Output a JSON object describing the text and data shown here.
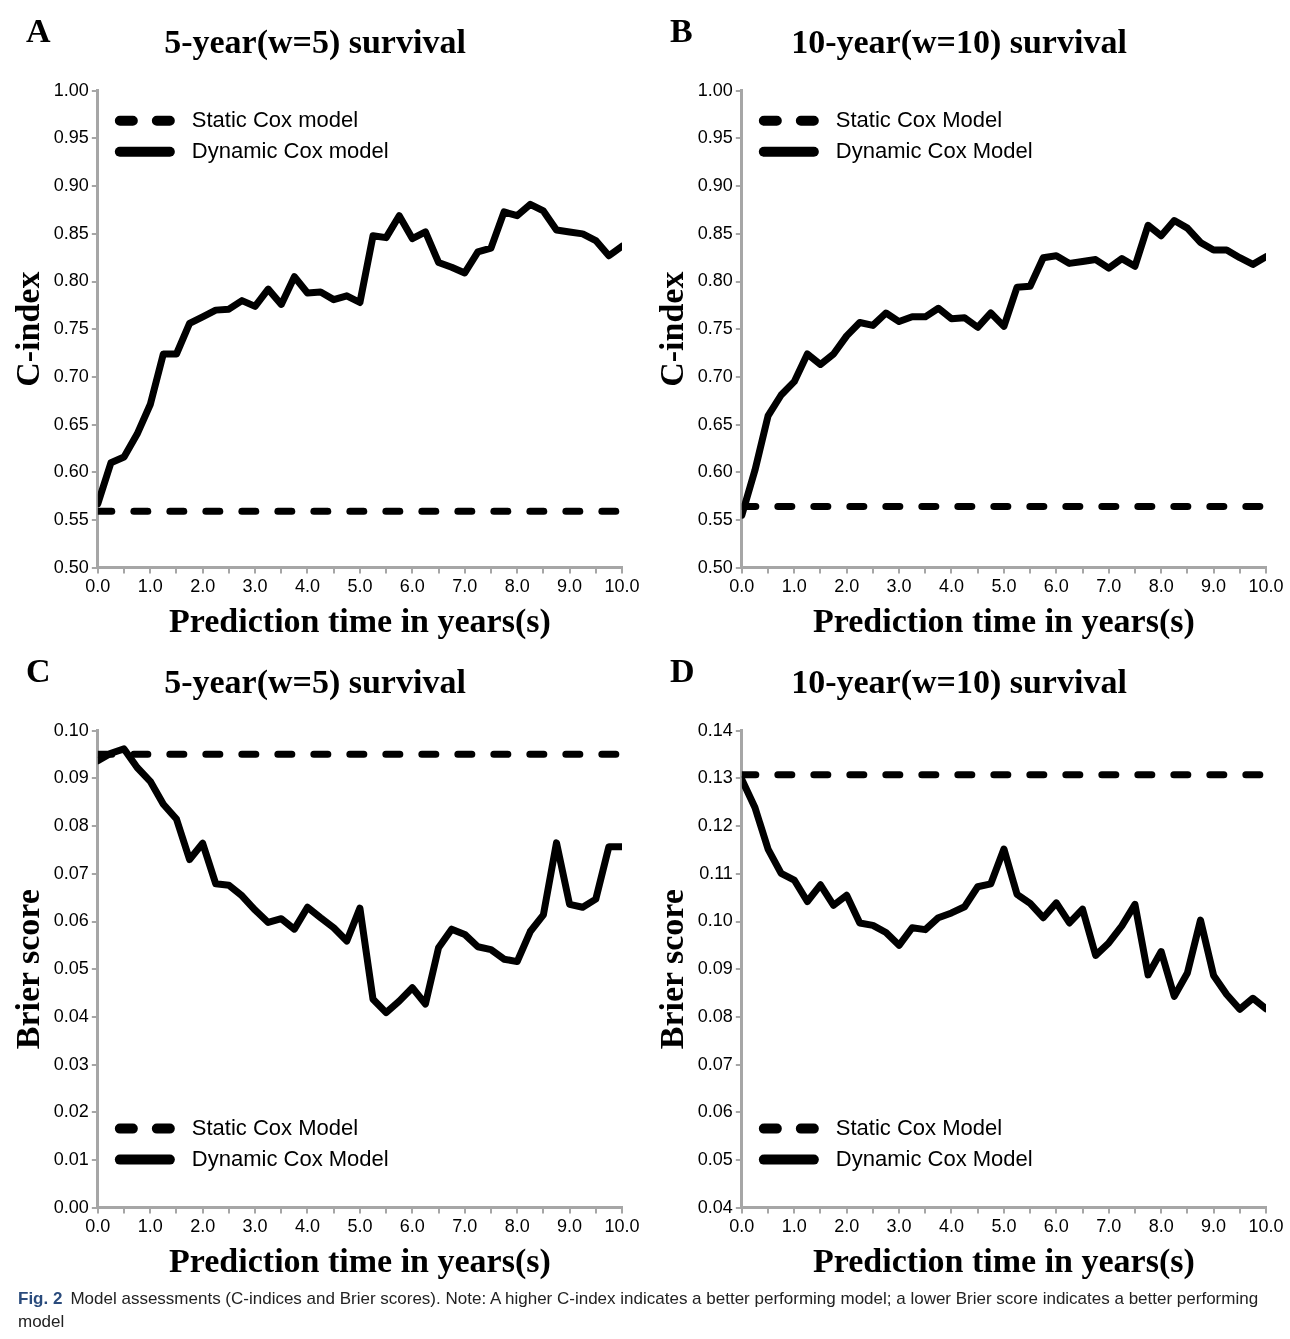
{
  "chart_data": [
    {
      "type": "line",
      "title": "5-year(w=5) survival",
      "xlabel": "Prediction time in years(s)",
      "ylabel": "C-index",
      "annotations": [
        "A"
      ],
      "x": [
        0,
        0.25,
        0.5,
        0.75,
        1,
        1.25,
        1.5,
        1.75,
        2,
        2.25,
        2.5,
        2.75,
        3,
        3.25,
        3.5,
        3.75,
        4,
        4.25,
        4.5,
        4.75,
        5,
        5.25,
        5.5,
        5.75,
        6,
        6.25,
        6.5,
        6.75,
        7,
        7.25,
        7.5,
        7.75,
        8,
        8.25,
        8.5,
        8.75,
        9,
        9.25,
        9.5,
        9.75,
        10
      ],
      "series": [
        {
          "name": "Static Cox model",
          "color": "#000000",
          "line_style": "dashed",
          "values": [
            0.559,
            0.559,
            0.559,
            0.559,
            0.559,
            0.559,
            0.559,
            0.559,
            0.559,
            0.559,
            0.559,
            0.559,
            0.559,
            0.559,
            0.559,
            0.559,
            0.559,
            0.559,
            0.559,
            0.559,
            0.559,
            0.559,
            0.559,
            0.559,
            0.559,
            0.559,
            0.559,
            0.559,
            0.559,
            0.559,
            0.559,
            0.559,
            0.559,
            0.559,
            0.559,
            0.559,
            0.559,
            0.559,
            0.559,
            0.559,
            0.559
          ]
        },
        {
          "name": "Dynamic Cox model",
          "color": "#000000",
          "line_style": "solid",
          "values": [
            0.567,
            0.61,
            0.616,
            0.64,
            0.671,
            0.724,
            0.724,
            0.756,
            0.763,
            0.77,
            0.771,
            0.78,
            0.774,
            0.792,
            0.776,
            0.805,
            0.788,
            0.789,
            0.781,
            0.785,
            0.778,
            0.848,
            0.846,
            0.869,
            0.845,
            0.852,
            0.82,
            0.815,
            0.809,
            0.831,
            0.835,
            0.873,
            0.869,
            0.881,
            0.874,
            0.854,
            0.852,
            0.85,
            0.843,
            0.827,
            0.837
          ]
        }
      ],
      "xlim": [
        0,
        10
      ],
      "xticks": [
        {
          "value": 0,
          "label": "0.0"
        },
        {
          "value": 0.5,
          "label": null
        },
        {
          "value": 1,
          "label": "1.0"
        },
        {
          "value": 1.5,
          "label": null
        },
        {
          "value": 2,
          "label": "2.0"
        },
        {
          "value": 2.5,
          "label": null
        },
        {
          "value": 3,
          "label": "3.0"
        },
        {
          "value": 3.5,
          "label": null
        },
        {
          "value": 4,
          "label": "4.0"
        },
        {
          "value": 4.5,
          "label": null
        },
        {
          "value": 5,
          "label": "5.0"
        },
        {
          "value": 5.5,
          "label": null
        },
        {
          "value": 6,
          "label": "6.0"
        },
        {
          "value": 6.5,
          "label": null
        },
        {
          "value": 7,
          "label": "7.0"
        },
        {
          "value": 7.5,
          "label": null
        },
        {
          "value": 8,
          "label": "8.0"
        },
        {
          "value": 8.5,
          "label": null
        },
        {
          "value": 9,
          "label": "9.0"
        },
        {
          "value": 9.5,
          "label": null
        },
        {
          "value": 10,
          "label": "10.0"
        }
      ],
      "ylim": [
        0.5,
        1
      ],
      "yticks": [
        {
          "value": 0.5,
          "label": "0.50"
        },
        0.55,
        {
          "value": 0.6,
          "label": "0.60"
        },
        0.65,
        {
          "value": 0.7,
          "label": "0.70"
        },
        0.75,
        {
          "value": 0.8,
          "label": "0.80"
        },
        0.85,
        {
          "value": 0.9,
          "label": "0.90"
        },
        0.95,
        {
          "value": 1,
          "label": "1.00"
        }
      ],
      "grid": false,
      "legend": "top left",
      "marker": "none"
    },
    {
      "type": "line",
      "title": "10-year(w=10) survival",
      "xlabel": "Prediction time in years(s)",
      "ylabel": "C-index",
      "annotations": [
        "B"
      ],
      "x": [
        0,
        0.25,
        0.5,
        0.75,
        1,
        1.25,
        1.5,
        1.75,
        2,
        2.25,
        2.5,
        2.75,
        3,
        3.25,
        3.5,
        3.75,
        4,
        4.25,
        4.5,
        4.75,
        5,
        5.25,
        5.5,
        5.75,
        6,
        6.25,
        6.5,
        6.75,
        7,
        7.25,
        7.5,
        7.75,
        8,
        8.25,
        8.5,
        8.75,
        9,
        9.25,
        9.5,
        9.75,
        10
      ],
      "series": [
        {
          "name": "Static Cox Model",
          "color": "#000000",
          "line_style": "dashed",
          "values": [
            0.564,
            0.564,
            0.564,
            0.564,
            0.564,
            0.564,
            0.564,
            0.564,
            0.564,
            0.564,
            0.564,
            0.564,
            0.564,
            0.564,
            0.564,
            0.564,
            0.564,
            0.564,
            0.564,
            0.564,
            0.564,
            0.564,
            0.564,
            0.564,
            0.564,
            0.564,
            0.564,
            0.564,
            0.564,
            0.564,
            0.564,
            0.564,
            0.564,
            0.564,
            0.564,
            0.564,
            0.564,
            0.564,
            0.564,
            0.564,
            0.564
          ]
        },
        {
          "name": "Dynamic Cox Model",
          "color": "#000000",
          "line_style": "solid",
          "values": [
            0.555,
            0.602,
            0.659,
            0.681,
            0.695,
            0.724,
            0.713,
            0.724,
            0.743,
            0.757,
            0.754,
            0.767,
            0.758,
            0.763,
            0.763,
            0.772,
            0.761,
            0.762,
            0.752,
            0.767,
            0.753,
            0.794,
            0.795,
            0.825,
            0.827,
            0.819,
            0.821,
            0.823,
            0.814,
            0.824,
            0.816,
            0.859,
            0.848,
            0.864,
            0.856,
            0.841,
            0.833,
            0.833,
            0.825,
            0.818,
            0.826
          ]
        }
      ],
      "xlim": [
        0,
        10
      ],
      "xticks": [
        {
          "value": 0,
          "label": "0.0"
        },
        {
          "value": 0.5,
          "label": null
        },
        {
          "value": 1,
          "label": "1.0"
        },
        {
          "value": 1.5,
          "label": null
        },
        {
          "value": 2,
          "label": "2.0"
        },
        {
          "value": 2.5,
          "label": null
        },
        {
          "value": 3,
          "label": "3.0"
        },
        {
          "value": 3.5,
          "label": null
        },
        {
          "value": 4,
          "label": "4.0"
        },
        {
          "value": 4.5,
          "label": null
        },
        {
          "value": 5,
          "label": "5.0"
        },
        {
          "value": 5.5,
          "label": null
        },
        {
          "value": 6,
          "label": "6.0"
        },
        {
          "value": 6.5,
          "label": null
        },
        {
          "value": 7,
          "label": "7.0"
        },
        {
          "value": 7.5,
          "label": null
        },
        {
          "value": 8,
          "label": "8.0"
        },
        {
          "value": 8.5,
          "label": null
        },
        {
          "value": 9,
          "label": "9.0"
        },
        {
          "value": 9.5,
          "label": null
        },
        {
          "value": 10,
          "label": "10.0"
        }
      ],
      "ylim": [
        0.5,
        1
      ],
      "yticks": [
        {
          "value": 0.5,
          "label": "0.50"
        },
        0.55,
        {
          "value": 0.6,
          "label": "0.60"
        },
        0.65,
        {
          "value": 0.7,
          "label": "0.70"
        },
        0.75,
        {
          "value": 0.8,
          "label": "0.80"
        },
        0.85,
        {
          "value": 0.9,
          "label": "0.90"
        },
        0.95,
        {
          "value": 1,
          "label": "1.00"
        }
      ],
      "grid": false,
      "legend": "top left",
      "marker": "none"
    },
    {
      "type": "line",
      "title": "5-year(w=5) survival",
      "xlabel": "Prediction time in years(s)",
      "ylabel": "Brier score",
      "annotations": [
        "C"
      ],
      "x": [
        0,
        0.25,
        0.5,
        0.75,
        1,
        1.25,
        1.5,
        1.75,
        2,
        2.25,
        2.5,
        2.75,
        3,
        3.25,
        3.5,
        3.75,
        4,
        4.25,
        4.5,
        4.75,
        5,
        5.25,
        5.5,
        5.75,
        6,
        6.25,
        6.5,
        6.75,
        7,
        7.25,
        7.5,
        7.75,
        8,
        8.25,
        8.5,
        8.75,
        9,
        9.25,
        9.5,
        9.75,
        10
      ],
      "series": [
        {
          "name": "Static Cox Model",
          "color": "#000000",
          "line_style": "dashed",
          "values": [
            0.0951,
            0.0951,
            0.0951,
            0.0951,
            0.0951,
            0.0951,
            0.0951,
            0.0951,
            0.0951,
            0.0951,
            0.0951,
            0.0951,
            0.0951,
            0.0951,
            0.0951,
            0.0951,
            0.0951,
            0.0951,
            0.0951,
            0.0951,
            0.0951,
            0.0951,
            0.0951,
            0.0951,
            0.0951,
            0.0951,
            0.0951,
            0.0951,
            0.0951,
            0.0951,
            0.0951,
            0.0951,
            0.0951,
            0.0951,
            0.0951,
            0.0951,
            0.0951,
            0.0951,
            0.0951,
            0.0951,
            0.0951
          ]
        },
        {
          "name": "Dynamic Cox Model",
          "color": "#000000",
          "line_style": "solid",
          "values": [
            0.0937,
            0.0953,
            0.0962,
            0.0923,
            0.0894,
            0.0846,
            0.0815,
            0.073,
            0.0764,
            0.0679,
            0.0676,
            0.0654,
            0.0624,
            0.0598,
            0.0606,
            0.0584,
            0.063,
            0.0608,
            0.0587,
            0.0559,
            0.0628,
            0.0437,
            0.0409,
            0.0433,
            0.0461,
            0.0427,
            0.0545,
            0.0584,
            0.0573,
            0.0547,
            0.0541,
            0.0521,
            0.0516,
            0.0579,
            0.0614,
            0.0765,
            0.0636,
            0.063,
            0.0647,
            0.0757,
            0.0757
          ]
        }
      ],
      "xlim": [
        0,
        10
      ],
      "xticks": [
        {
          "value": 0,
          "label": "0.0"
        },
        {
          "value": 0.5,
          "label": null
        },
        {
          "value": 1,
          "label": "1.0"
        },
        {
          "value": 1.5,
          "label": null
        },
        {
          "value": 2,
          "label": "2.0"
        },
        {
          "value": 2.5,
          "label": null
        },
        {
          "value": 3,
          "label": "3.0"
        },
        {
          "value": 3.5,
          "label": null
        },
        {
          "value": 4,
          "label": "4.0"
        },
        {
          "value": 4.5,
          "label": null
        },
        {
          "value": 5,
          "label": "5.0"
        },
        {
          "value": 5.5,
          "label": null
        },
        {
          "value": 6,
          "label": "6.0"
        },
        {
          "value": 6.5,
          "label": null
        },
        {
          "value": 7,
          "label": "7.0"
        },
        {
          "value": 7.5,
          "label": null
        },
        {
          "value": 8,
          "label": "8.0"
        },
        {
          "value": 8.5,
          "label": null
        },
        {
          "value": 9,
          "label": "9.0"
        },
        {
          "value": 9.5,
          "label": null
        },
        {
          "value": 10,
          "label": "10.0"
        }
      ],
      "ylim": [
        0,
        0.1
      ],
      "yticks": [
        {
          "value": 0,
          "label": "0.00"
        },
        0.01,
        0.02,
        0.03,
        0.04,
        0.05,
        0.06,
        0.07,
        0.08,
        0.09,
        {
          "value": 0.1,
          "label": "0.10"
        }
      ],
      "grid": false,
      "legend": "bottom left",
      "marker": "none"
    },
    {
      "type": "line",
      "title": "10-year(w=10) survival",
      "xlabel": "Prediction time in years(s)",
      "ylabel": "Brier score",
      "annotations": [
        "D",
        "Fig. 2",
        "Model assessments (C-indices and Brier scores). Note: A higher C-index indicates a better performing model; a lower Brier score indicates a better performing model"
      ],
      "x": [
        0,
        0.25,
        0.5,
        0.75,
        1,
        1.25,
        1.5,
        1.75,
        2,
        2.25,
        2.5,
        2.75,
        3,
        3.25,
        3.5,
        3.75,
        4,
        4.25,
        4.5,
        4.75,
        5,
        5.25,
        5.5,
        5.75,
        6,
        6.25,
        6.5,
        6.75,
        7,
        7.25,
        7.5,
        7.75,
        8,
        8.25,
        8.5,
        8.75,
        9,
        9.25,
        9.5,
        9.75,
        10
      ],
      "series": [
        {
          "name": "Static Cox Model",
          "color": "#000000",
          "line_style": "dashed",
          "values": [
            0.1308,
            0.1308,
            0.1308,
            0.1308,
            0.1308,
            0.1308,
            0.1308,
            0.1308,
            0.1308,
            0.1308,
            0.1308,
            0.1308,
            0.1308,
            0.1308,
            0.1308,
            0.1308,
            0.1308,
            0.1308,
            0.1308,
            0.1308,
            0.1308,
            0.1308,
            0.1308,
            0.1308,
            0.1308,
            0.1308,
            0.1308,
            0.1308,
            0.1308,
            0.1308,
            0.1308,
            0.1308,
            0.1308,
            0.1308,
            0.1308,
            0.1308,
            0.1308,
            0.1308,
            0.1308,
            0.1308,
            0.1308
          ]
        },
        {
          "name": "Dynamic Cox Model",
          "color": "#000000",
          "line_style": "solid",
          "values": [
            0.1298,
            0.1239,
            0.1152,
            0.1101,
            0.1087,
            0.1042,
            0.1077,
            0.1034,
            0.1055,
            0.0997,
            0.0992,
            0.0977,
            0.095,
            0.0987,
            0.0983,
            0.1008,
            0.1018,
            0.1031,
            0.1073,
            0.1079,
            0.1152,
            0.1057,
            0.1038,
            0.1008,
            0.1039,
            0.0997,
            0.1026,
            0.0929,
            0.0955,
            0.0991,
            0.1036,
            0.0888,
            0.0937,
            0.0843,
            0.0892,
            0.1003,
            0.0887,
            0.0847,
            0.0816,
            0.0839,
            0.0817
          ]
        }
      ],
      "xlim": [
        0,
        10
      ],
      "xticks": [
        {
          "value": 0,
          "label": "0.0"
        },
        {
          "value": 0.5,
          "label": null
        },
        {
          "value": 1,
          "label": "1.0"
        },
        {
          "value": 1.5,
          "label": null
        },
        {
          "value": 2,
          "label": "2.0"
        },
        {
          "value": 2.5,
          "label": null
        },
        {
          "value": 3,
          "label": "3.0"
        },
        {
          "value": 3.5,
          "label": null
        },
        {
          "value": 4,
          "label": "4.0"
        },
        {
          "value": 4.5,
          "label": null
        },
        {
          "value": 5,
          "label": "5.0"
        },
        {
          "value": 5.5,
          "label": null
        },
        {
          "value": 6,
          "label": "6.0"
        },
        {
          "value": 6.5,
          "label": null
        },
        {
          "value": 7,
          "label": "7.0"
        },
        {
          "value": 7.5,
          "label": null
        },
        {
          "value": 8,
          "label": "8.0"
        },
        {
          "value": 8.5,
          "label": null
        },
        {
          "value": 9,
          "label": "9.0"
        },
        {
          "value": 9.5,
          "label": null
        },
        {
          "value": 10,
          "label": "10.0"
        }
      ],
      "ylim": [
        0.04,
        0.14
      ],
      "yticks": [
        0.04,
        0.05,
        0.06,
        0.07,
        0.08,
        0.09,
        {
          "value": 0.1,
          "label": "0.10"
        },
        0.11,
        0.12,
        0.13,
        0.14
      ],
      "grid": false,
      "legend": "bottom left",
      "marker": "none"
    }
  ]
}
